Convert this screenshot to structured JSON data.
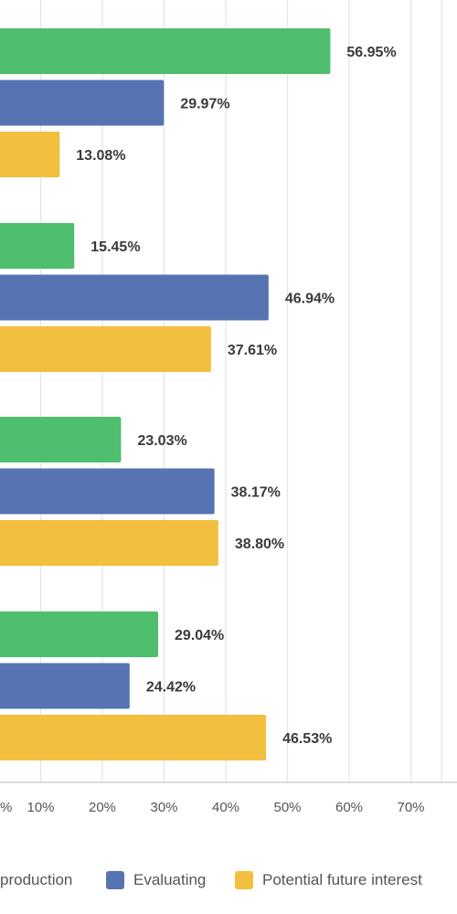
{
  "chart_data": {
    "type": "bar",
    "orientation": "horizontal",
    "categories": [
      "",
      "",
      "",
      ""
    ],
    "series": [
      {
        "name": "production",
        "color": "#4fbf6f",
        "values": [
          56.95,
          15.45,
          23.03,
          29.04
        ],
        "labels": [
          "56.95%",
          "15.45%",
          "23.03%",
          "29.04%"
        ]
      },
      {
        "name": "Evaluating",
        "color": "#5673b2",
        "values": [
          29.97,
          46.94,
          38.17,
          24.42
        ],
        "labels": [
          "29.97%",
          "46.94%",
          "38.17%",
          "24.42%"
        ]
      },
      {
        "name": "Potential future interest",
        "color": "#f2bf3e",
        "values": [
          13.08,
          37.61,
          38.8,
          46.53
        ],
        "labels": [
          "13.08%",
          "37.61%",
          "38.80%",
          "46.53%"
        ]
      }
    ],
    "xticks": [
      "%",
      "10%",
      "20%",
      "30%",
      "40%",
      "50%",
      "60%",
      "70%"
    ],
    "xlim": [
      -2,
      75
    ],
    "grid": true,
    "legend": {
      "position": "bottom"
    },
    "title": "",
    "xlabel": "",
    "ylabel": ""
  }
}
